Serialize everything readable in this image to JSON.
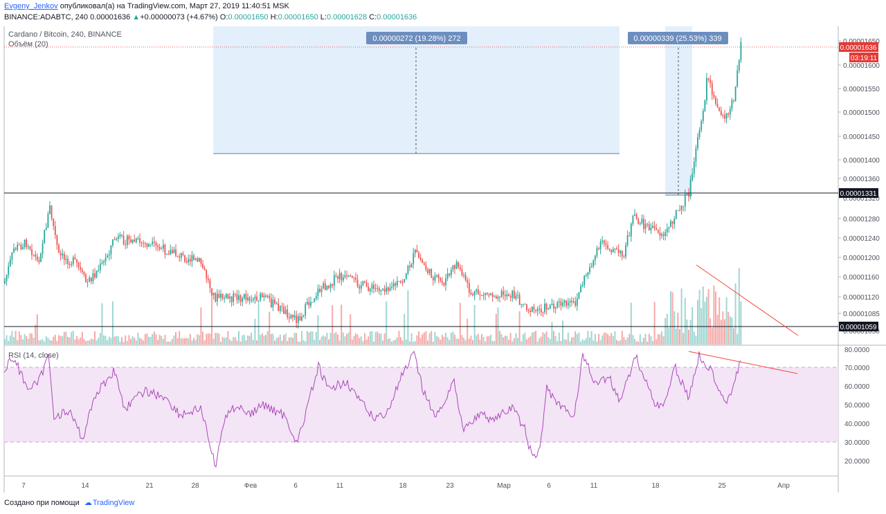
{
  "header": {
    "author": "Evgeny_Jenkov",
    "published_text": "опубликовал(а) на TradingView.com, Март 27, 2019 11:40:51 MSK",
    "symbol": "BINANCE:ADABTC, 240",
    "last": "0.00001636",
    "change": "+0.00000073 (+4.67%)",
    "o_label": "O:",
    "o": "0.00001650",
    "h_label": "H:",
    "h": "0.00001650",
    "l_label": "L:",
    "l": "0.00001628",
    "c_label": "C:",
    "c": "0.00001636"
  },
  "legend": {
    "title": "Cardano / Bitcoin, 240, BINANCE",
    "volume": "Объём (20)",
    "rsi": "RSI (14, close)"
  },
  "measurements": [
    {
      "label": "0.00000272 (19.28%) 272"
    },
    {
      "label": "0.00000339 (25.53%) 339"
    }
  ],
  "price_axis": {
    "ticks": [
      {
        "label": "0.00001650",
        "value": 1650
      },
      {
        "label": "0.00001600",
        "value": 1600
      },
      {
        "label": "0.00001550",
        "value": 1550
      },
      {
        "label": "0.00001500",
        "value": 1500
      },
      {
        "label": "0.00001450",
        "value": 1450
      },
      {
        "label": "0.00001400",
        "value": 1400
      },
      {
        "label": "0.00001360",
        "value": 1360
      },
      {
        "label": "0.00001320",
        "value": 1320
      },
      {
        "label": "0.00001280",
        "value": 1280
      },
      {
        "label": "0.00001240",
        "value": 1240
      },
      {
        "label": "0.00001200",
        "value": 1200
      },
      {
        "label": "0.00001160",
        "value": 1160
      },
      {
        "label": "0.00001120",
        "value": 1120
      },
      {
        "label": "0.00001085",
        "value": 1085
      },
      {
        "label": "0.00001050",
        "value": 1050
      }
    ],
    "current_price": "0.00001636",
    "countdown": "03:19:11",
    "level_high": "0.00001331",
    "level_low": "0.00001059"
  },
  "rsi_axis": {
    "ticks": [
      "80.0000",
      "70.0000",
      "60.0000",
      "50.0000",
      "40.0000",
      "30.0000",
      "20.0000"
    ]
  },
  "time_axis": {
    "ticks": [
      "7",
      "14",
      "21",
      "28",
      "Фев",
      "6",
      "11",
      "18",
      "23",
      "Мар",
      "6",
      "11",
      "18",
      "25",
      "Апр"
    ]
  },
  "colors": {
    "up": "#26a69a",
    "down": "#ef5350",
    "rsi_line": "#ab47bc",
    "rsi_band": "#f3e5f5",
    "measure_fill": "#e3f0fc",
    "measure_label_bg": "#6c8ebf",
    "trendline": "#f44336",
    "current_price_bg": "#e53935"
  },
  "footer": {
    "created_with": "Создано при помощи",
    "brand": "TradingView"
  }
}
